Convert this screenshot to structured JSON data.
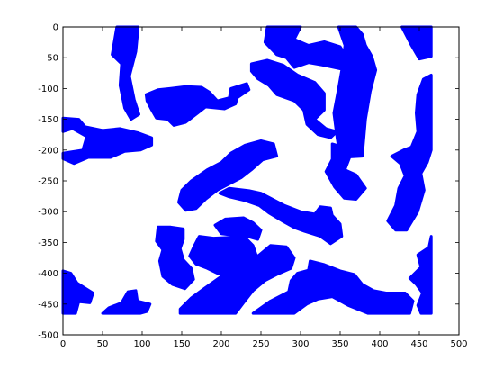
{
  "chart_data": {
    "type": "scatter",
    "title": "",
    "xlabel": "",
    "ylabel": "",
    "xlim": [
      0,
      500
    ],
    "ylim": [
      -500,
      0
    ],
    "xticks": [
      0,
      50,
      100,
      150,
      200,
      250,
      300,
      350,
      400,
      450,
      500
    ],
    "yticks": [
      0,
      -50,
      -100,
      -150,
      -200,
      -250,
      -300,
      -350,
      -400,
      -450,
      -500
    ],
    "grid": false,
    "legend": "none",
    "fill_color": "#0000ff",
    "series": [
      {
        "regions": [
          [
            [
              68,
              0
            ],
            [
              95,
              0
            ],
            [
              92,
              -40
            ],
            [
              84,
              -80
            ],
            [
              90,
              -118
            ],
            [
              96,
              -142
            ],
            [
              86,
              -150
            ],
            [
              78,
              -132
            ],
            [
              72,
              -95
            ],
            [
              74,
              -60
            ],
            [
              62,
              -45
            ]
          ],
          [
            [
              0,
              -148
            ],
            [
              20,
              -150
            ],
            [
              28,
              -162
            ],
            [
              50,
              -168
            ],
            [
              72,
              -165
            ],
            [
              95,
              -172
            ],
            [
              112,
              -180
            ],
            [
              112,
              -192
            ],
            [
              98,
              -200
            ],
            [
              78,
              -202
            ],
            [
              60,
              -212
            ],
            [
              32,
              -212
            ],
            [
              14,
              -222
            ],
            [
              0,
              -214
            ],
            [
              0,
              -205
            ],
            [
              25,
              -200
            ],
            [
              30,
              -178
            ],
            [
              12,
              -165
            ],
            [
              0,
              -170
            ]
          ],
          [
            [
              105,
              -110
            ],
            [
              120,
              -102
            ],
            [
              135,
              -100
            ],
            [
              155,
              -97
            ],
            [
              175,
              -98
            ],
            [
              185,
              -106
            ],
            [
              195,
              -120
            ],
            [
              210,
              -115
            ],
            [
              212,
              -100
            ],
            [
              232,
              -92
            ],
            [
              235,
              -102
            ],
            [
              220,
              -115
            ],
            [
              218,
              -125
            ],
            [
              204,
              -133
            ],
            [
              180,
              -130
            ],
            [
              170,
              -140
            ],
            [
              155,
              -155
            ],
            [
              140,
              -160
            ],
            [
              132,
              -150
            ],
            [
              118,
              -148
            ],
            [
              112,
              -135
            ],
            [
              106,
              -120
            ]
          ],
          [
            [
              238,
              -60
            ],
            [
              258,
              -54
            ],
            [
              278,
              -62
            ],
            [
              296,
              -78
            ],
            [
              318,
              -90
            ],
            [
              330,
              -108
            ],
            [
              330,
              -135
            ],
            [
              318,
              -150
            ],
            [
              332,
              -165
            ],
            [
              346,
              -170
            ],
            [
              338,
              -180
            ],
            [
              322,
              -175
            ],
            [
              308,
              -158
            ],
            [
              304,
              -135
            ],
            [
              292,
              -120
            ],
            [
              270,
              -110
            ],
            [
              260,
              -95
            ],
            [
              246,
              -84
            ],
            [
              238,
              -72
            ]
          ],
          [
            [
              258,
              0
            ],
            [
              300,
              0
            ],
            [
              292,
              -20
            ],
            [
              310,
              -30
            ],
            [
              330,
              -24
            ],
            [
              350,
              -32
            ],
            [
              360,
              -52
            ],
            [
              350,
              -68
            ],
            [
              328,
              -62
            ],
            [
              310,
              -58
            ],
            [
              292,
              -66
            ],
            [
              282,
              -50
            ],
            [
              270,
              -45
            ],
            [
              255,
              -25
            ]
          ],
          [
            [
              348,
              0
            ],
            [
              370,
              0
            ],
            [
              378,
              -12
            ],
            [
              382,
              -30
            ],
            [
              390,
              -48
            ],
            [
              395,
              -70
            ],
            [
              388,
              -105
            ],
            [
              382,
              -150
            ],
            [
              378,
              -210
            ],
            [
              350,
              -212
            ],
            [
              346,
              -180
            ],
            [
              342,
              -140
            ],
            [
              348,
              -100
            ],
            [
              352,
              -70
            ],
            [
              356,
              -30
            ]
          ],
          [
            [
              340,
              -190
            ],
            [
              356,
              -196
            ],
            [
              362,
              -212
            ],
            [
              356,
              -232
            ],
            [
              370,
              -240
            ],
            [
              382,
              -262
            ],
            [
              370,
              -280
            ],
            [
              355,
              -278
            ],
            [
              343,
              -260
            ],
            [
              332,
              -235
            ],
            [
              340,
              -215
            ]
          ],
          [
            [
              415,
              -210
            ],
            [
              430,
              -200
            ],
            [
              440,
              -195
            ],
            [
              448,
              -170
            ],
            [
              446,
              -140
            ],
            [
              448,
              -110
            ],
            [
              455,
              -85
            ],
            [
              465,
              -78
            ],
            [
              465,
              -200
            ],
            [
              460,
              -220
            ],
            [
              452,
              -238
            ],
            [
              456,
              -265
            ],
            [
              448,
              -300
            ],
            [
              434,
              -330
            ],
            [
              420,
              -330
            ],
            [
              410,
              -315
            ],
            [
              420,
              -290
            ],
            [
              424,
              -262
            ],
            [
              432,
              -242
            ],
            [
              426,
              -222
            ]
          ],
          [
            [
              428,
              0
            ],
            [
              465,
              0
            ],
            [
              465,
              -48
            ],
            [
              450,
              -52
            ],
            [
              440,
              -30
            ]
          ],
          [
            [
              150,
              -265
            ],
            [
              162,
              -250
            ],
            [
              182,
              -232
            ],
            [
              200,
              -220
            ],
            [
              212,
              -205
            ],
            [
              230,
              -192
            ],
            [
              250,
              -185
            ],
            [
              266,
              -190
            ],
            [
              270,
              -210
            ],
            [
              252,
              -216
            ],
            [
              238,
              -232
            ],
            [
              225,
              -245
            ],
            [
              210,
              -255
            ],
            [
              195,
              -265
            ],
            [
              180,
              -280
            ],
            [
              168,
              -295
            ],
            [
              155,
              -298
            ],
            [
              146,
              -285
            ]
          ],
          [
            [
              198,
              -270
            ],
            [
              210,
              -262
            ],
            [
              235,
              -266
            ],
            [
              250,
              -270
            ],
            [
              262,
              -278
            ],
            [
              280,
              -290
            ],
            [
              300,
              -300
            ],
            [
              318,
              -304
            ],
            [
              325,
              -292
            ],
            [
              338,
              -294
            ],
            [
              340,
              -306
            ],
            [
              350,
              -320
            ],
            [
              352,
              -340
            ],
            [
              338,
              -352
            ],
            [
              325,
              -340
            ],
            [
              305,
              -332
            ],
            [
              292,
              -326
            ],
            [
              278,
              -316
            ],
            [
              260,
              -302
            ],
            [
              248,
              -290
            ],
            [
              230,
              -282
            ],
            [
              210,
              -276
            ]
          ],
          [
            [
              120,
              -325
            ],
            [
              136,
              -325
            ],
            [
              152,
              -328
            ],
            [
              152,
              -345
            ],
            [
              148,
              -360
            ],
            [
              152,
              -378
            ],
            [
              162,
              -392
            ],
            [
              165,
              -410
            ],
            [
              154,
              -425
            ],
            [
              138,
              -418
            ],
            [
              126,
              -405
            ],
            [
              122,
              -380
            ],
            [
              126,
              -362
            ],
            [
              118,
              -348
            ]
          ],
          [
            [
              172,
              -340
            ],
            [
              190,
              -343
            ],
            [
              208,
              -342
            ],
            [
              230,
              -342
            ],
            [
              240,
              -355
            ],
            [
              244,
              -370
            ],
            [
              232,
              -382
            ],
            [
              222,
              -395
            ],
            [
              212,
              -402
            ],
            [
              195,
              -400
            ],
            [
              182,
              -392
            ],
            [
              168,
              -385
            ],
            [
              160,
              -372
            ],
            [
              166,
              -355
            ]
          ],
          [
            [
              192,
              -322
            ],
            [
              205,
              -312
            ],
            [
              228,
              -310
            ],
            [
              240,
              -318
            ],
            [
              250,
              -330
            ],
            [
              246,
              -345
            ],
            [
              232,
              -340
            ],
            [
              214,
              -338
            ],
            [
              200,
              -336
            ]
          ],
          [
            [
              148,
              -458
            ],
            [
              162,
              -440
            ],
            [
              178,
              -425
            ],
            [
              200,
              -405
            ],
            [
              225,
              -392
            ],
            [
              248,
              -370
            ],
            [
              262,
              -355
            ],
            [
              282,
              -357
            ],
            [
              292,
              -375
            ],
            [
              288,
              -392
            ],
            [
              270,
              -402
            ],
            [
              255,
              -412
            ],
            [
              240,
              -428
            ],
            [
              228,
              -448
            ],
            [
              218,
              -465
            ],
            [
              148,
              -465
            ]
          ],
          [
            [
              50,
              -465
            ],
            [
              58,
              -456
            ],
            [
              74,
              -448
            ],
            [
              82,
              -430
            ],
            [
              92,
              -428
            ],
            [
              94,
              -445
            ],
            [
              110,
              -450
            ],
            [
              106,
              -462
            ],
            [
              98,
              -465
            ]
          ],
          [
            [
              288,
              -412
            ],
            [
              296,
              -400
            ],
            [
              310,
              -395
            ],
            [
              312,
              -380
            ],
            [
              330,
              -386
            ],
            [
              350,
              -396
            ],
            [
              368,
              -402
            ],
            [
              378,
              -418
            ],
            [
              392,
              -428
            ],
            [
              408,
              -432
            ],
            [
              432,
              -432
            ],
            [
              442,
              -445
            ],
            [
              438,
              -465
            ],
            [
              385,
              -465
            ],
            [
              360,
              -452
            ],
            [
              340,
              -438
            ],
            [
              322,
              -442
            ],
            [
              308,
              -450
            ],
            [
              292,
              -465
            ],
            [
              240,
              -465
            ],
            [
              262,
              -445
            ],
            [
              285,
              -430
            ]
          ],
          [
            [
              0,
              -396
            ],
            [
              10,
              -400
            ],
            [
              18,
              -416
            ],
            [
              28,
              -424
            ],
            [
              38,
              -432
            ],
            [
              34,
              -448
            ],
            [
              20,
              -446
            ],
            [
              16,
              -465
            ],
            [
              0,
              -465
            ]
          ],
          [
            [
              438,
              -408
            ],
            [
              452,
              -390
            ],
            [
              448,
              -370
            ],
            [
              462,
              -358
            ],
            [
              465,
              -340
            ],
            [
              465,
              -465
            ],
            [
              452,
              -465
            ],
            [
              448,
              -452
            ],
            [
              454,
              -432
            ],
            [
              446,
              -418
            ]
          ]
        ]
      }
    ]
  }
}
